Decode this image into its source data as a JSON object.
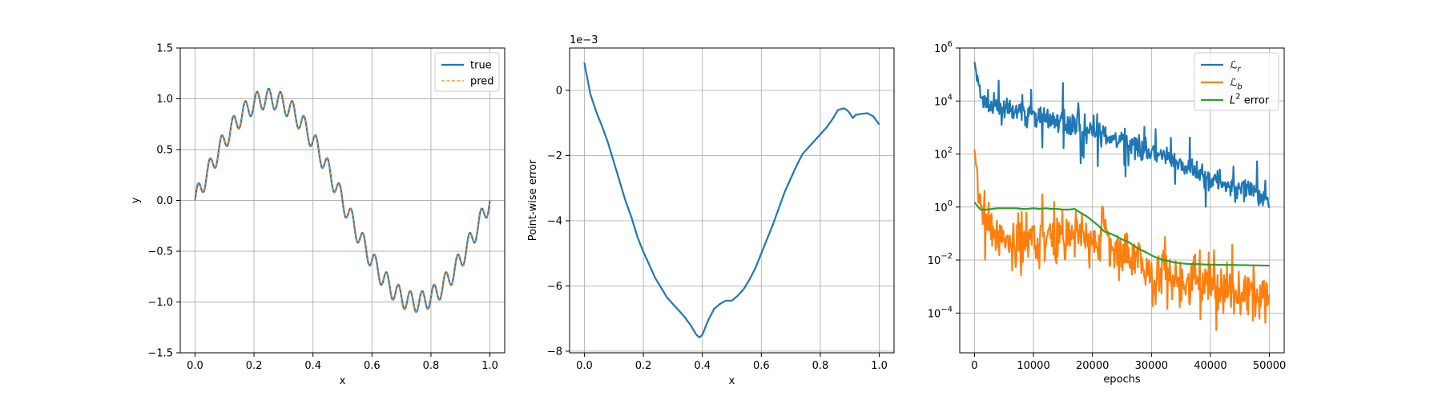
{
  "colors": {
    "true": "#1f77b4",
    "pred": "#ff7f0e",
    "loss_r": "#1f77b4",
    "loss_b": "#ff7f0e",
    "l2": "#2ca02c",
    "grid": "#b0b0b0",
    "axes": "#000000"
  },
  "chart_data": [
    {
      "type": "line",
      "xlabel": "x",
      "ylabel": "y",
      "xlim": [
        -0.05,
        1.05
      ],
      "ylim": [
        -1.5,
        1.5
      ],
      "xticks": [
        0.0,
        0.2,
        0.4,
        0.6,
        0.8,
        1.0
      ],
      "xtick_labels": [
        "0.0",
        "0.2",
        "0.4",
        "0.6",
        "0.8",
        "1.0"
      ],
      "yticks": [
        -1.5,
        -1.0,
        -0.5,
        0.0,
        0.5,
        1.0,
        1.5
      ],
      "ytick_labels": [
        "−1.5",
        "−1.0",
        "−0.5",
        "0.0",
        "0.5",
        "1.0",
        "1.5"
      ],
      "grid": true,
      "legend": "top-right",
      "function": "sin(2*pi*x) + 0.1*sin(50*pi*x)",
      "x_range": [
        0,
        1
      ],
      "series": [
        {
          "name": "true",
          "style": "solid",
          "color": "#1f77b4"
        },
        {
          "name": "pred",
          "style": "dashed",
          "color": "#ff7f0e"
        }
      ]
    },
    {
      "type": "line",
      "xlabel": "x",
      "ylabel": "Point-wise error",
      "offset_text": "1e−3",
      "xlim": [
        -0.05,
        1.05
      ],
      "ylim": [
        -8.05,
        1.3
      ],
      "xticks": [
        0.0,
        0.2,
        0.4,
        0.6,
        0.8,
        1.0
      ],
      "xtick_labels": [
        "0.0",
        "0.2",
        "0.4",
        "0.6",
        "0.8",
        "1.0"
      ],
      "yticks": [
        0,
        -2,
        -4,
        -6,
        -8
      ],
      "ytick_labels": [
        "0",
        "−2",
        "−4",
        "−6",
        "−8"
      ],
      "grid": true,
      "series": [
        {
          "name": "",
          "color": "#1f77b4",
          "x": [
            0.0,
            0.02,
            0.04,
            0.06,
            0.08,
            0.1,
            0.12,
            0.14,
            0.16,
            0.18,
            0.2,
            0.22,
            0.24,
            0.26,
            0.28,
            0.3,
            0.32,
            0.34,
            0.36,
            0.38,
            0.39,
            0.4,
            0.42,
            0.44,
            0.46,
            0.48,
            0.5,
            0.52,
            0.54,
            0.56,
            0.58,
            0.6,
            0.62,
            0.64,
            0.66,
            0.68,
            0.7,
            0.72,
            0.74,
            0.76,
            0.78,
            0.8,
            0.82,
            0.84,
            0.86,
            0.88,
            0.89,
            0.9,
            0.91,
            0.92,
            0.94,
            0.96,
            0.98,
            1.0
          ],
          "y": [
            0.85,
            -0.1,
            -0.65,
            -1.1,
            -1.6,
            -2.2,
            -2.8,
            -3.4,
            -3.9,
            -4.5,
            -4.95,
            -5.35,
            -5.75,
            -6.05,
            -6.35,
            -6.55,
            -6.75,
            -6.95,
            -7.2,
            -7.5,
            -7.58,
            -7.5,
            -7.05,
            -6.7,
            -6.55,
            -6.45,
            -6.45,
            -6.3,
            -6.1,
            -5.8,
            -5.45,
            -5.0,
            -4.55,
            -4.1,
            -3.6,
            -3.1,
            -2.7,
            -2.3,
            -1.95,
            -1.75,
            -1.55,
            -1.35,
            -1.15,
            -0.9,
            -0.6,
            -0.55,
            -0.6,
            -0.7,
            -0.85,
            -0.75,
            -0.72,
            -0.7,
            -0.8,
            -1.05
          ]
        }
      ]
    },
    {
      "type": "line",
      "xlabel": "epochs",
      "ylabel": "",
      "xlim": [
        -2500,
        52500
      ],
      "ylim_log10": [
        -5.5,
        6
      ],
      "xticks": [
        0,
        10000,
        20000,
        30000,
        40000,
        50000
      ],
      "xtick_labels": [
        "0",
        "10000",
        "20000",
        "30000",
        "40000",
        "50000"
      ],
      "yticks_exponents": [
        -4,
        -2,
        0,
        2,
        4,
        6
      ],
      "ytick_base": "10",
      "ytick_exponents": [
        "−4",
        "−2",
        "0",
        "2",
        "4",
        "6"
      ],
      "yscale": "log",
      "grid": true,
      "legend": "top-right",
      "series": [
        {
          "name": "ℒ",
          "subscript": "r",
          "color": "#1f77b4",
          "x": [
            0,
            1000,
            2000,
            3000,
            4000,
            5000,
            6000,
            7000,
            8000,
            9000,
            10000,
            11000,
            12000,
            13000,
            14000,
            15000,
            16000,
            17000,
            18000,
            19000,
            20000,
            21000,
            22000,
            23000,
            24000,
            25000,
            26000,
            27000,
            28000,
            29000,
            30000,
            31000,
            32000,
            33000,
            34000,
            35000,
            36000,
            37000,
            38000,
            39000,
            40000,
            41000,
            42000,
            43000,
            44000,
            45000,
            46000,
            47000,
            48000,
            49000,
            50000
          ],
          "y": [
            300000,
            15000,
            8000,
            6000,
            5000,
            5000,
            4000,
            3500,
            3500,
            3000,
            3000,
            2500,
            2500,
            2000,
            2000,
            1800,
            1500,
            1200,
            1000,
            800,
            700,
            600,
            500,
            400,
            300,
            300,
            250,
            200,
            150,
            130,
            100,
            90,
            70,
            60,
            50,
            40,
            30,
            25,
            20,
            15,
            12,
            10,
            8,
            7,
            6,
            5,
            4,
            3.5,
            3,
            2.5,
            2
          ]
        },
        {
          "name": "ℒ",
          "subscript": "b",
          "color": "#ff7f0e",
          "x": [
            0,
            1000,
            2000,
            3000,
            4000,
            5000,
            6000,
            7000,
            8000,
            9000,
            10000,
            11000,
            12000,
            13000,
            14000,
            15000,
            16000,
            17000,
            18000,
            19000,
            20000,
            21000,
            22000,
            23000,
            24000,
            25000,
            26000,
            27000,
            28000,
            29000,
            30000,
            31000,
            32000,
            33000,
            34000,
            35000,
            36000,
            37000,
            38000,
            39000,
            40000,
            41000,
            42000,
            43000,
            44000,
            45000,
            46000,
            47000,
            48000,
            49000,
            50000
          ],
          "y": [
            150,
            1.0,
            0.3,
            0.1,
            0.05,
            0.1,
            0.05,
            0.03,
            0.1,
            0.05,
            0.1,
            0.05,
            0.08,
            0.1,
            0.05,
            0.1,
            0.08,
            0.1,
            0.1,
            0.05,
            0.05,
            0.03,
            0.5,
            0.02,
            0.02,
            0.01,
            0.02,
            0.01,
            0.008,
            0.005,
            0.004,
            0.003,
            0.003,
            0.002,
            0.002,
            0.002,
            0.001,
            0.002,
            0.001,
            0.0015,
            0.001,
            0.001,
            0.0008,
            0.0008,
            0.0007,
            0.0006,
            0.0006,
            0.0005,
            0.0005,
            0.0004,
            0.0004
          ]
        },
        {
          "name": "L",
          "superscript": "2",
          "suffix": " error",
          "color": "#2ca02c",
          "x": [
            0,
            1000,
            2000,
            3000,
            4000,
            5000,
            6000,
            7000,
            8000,
            9000,
            10000,
            11000,
            12000,
            13000,
            14000,
            15000,
            16000,
            17000,
            18000,
            19000,
            20000,
            21000,
            22000,
            23000,
            24000,
            25000,
            26000,
            27000,
            28000,
            29000,
            30000,
            31000,
            32000,
            33000,
            34000,
            35000,
            36000,
            37000,
            38000,
            39000,
            40000,
            41000,
            42000,
            43000,
            44000,
            45000,
            46000,
            47000,
            48000,
            49000,
            50000
          ],
          "y": [
            1.5,
            0.8,
            0.8,
            0.85,
            0.9,
            0.9,
            0.9,
            0.9,
            0.85,
            0.85,
            0.9,
            0.85,
            0.9,
            0.85,
            0.85,
            0.8,
            0.8,
            0.85,
            0.6,
            0.45,
            0.3,
            0.2,
            0.12,
            0.1,
            0.08,
            0.06,
            0.05,
            0.035,
            0.025,
            0.02,
            0.015,
            0.012,
            0.01,
            0.009,
            0.008,
            0.0075,
            0.0072,
            0.007,
            0.007,
            0.0068,
            0.0067,
            0.0066,
            0.0066,
            0.0065,
            0.0065,
            0.0064,
            0.0064,
            0.0063,
            0.0063,
            0.0062,
            0.0062
          ]
        }
      ]
    }
  ]
}
